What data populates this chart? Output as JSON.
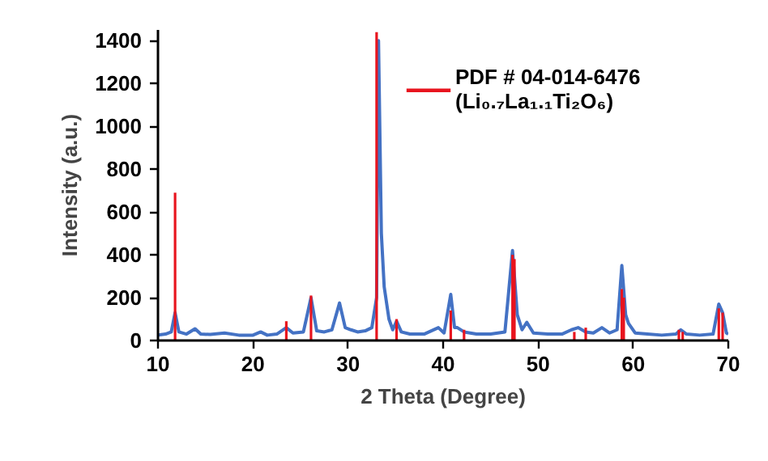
{
  "chart_data": {
    "type": "line",
    "xlabel": "2 Theta (Degree)",
    "ylabel": "Intensity (a.u.)",
    "xlim": [
      10,
      70
    ],
    "xticks": [
      10,
      20,
      30,
      40,
      50,
      60,
      70
    ],
    "ylim": [
      0,
      1450
    ],
    "yticks": [
      0,
      200,
      400,
      600,
      800,
      1000,
      1200,
      1400
    ],
    "grid": false,
    "legend": "top right",
    "series": [
      {
        "color": "#4472c4",
        "x": [
          10,
          10.8,
          11.4,
          11.8,
          12.2,
          13,
          13.9,
          14.5,
          15.5,
          17,
          18.5,
          20,
          20.8,
          21.5,
          22.5,
          23.5,
          24.2,
          25.3,
          26.1,
          26.7,
          27.5,
          28.3,
          29.1,
          29.7,
          30.3,
          31,
          31.8,
          32.5,
          33.0,
          33.2,
          33.5,
          33.8,
          34.3,
          34.7,
          35.1,
          35.6,
          36.5,
          38,
          39.5,
          40.1,
          40.8,
          41.2,
          41.5,
          42.2,
          43.5,
          45,
          46.5,
          47.3,
          47.8,
          48.3,
          48.8,
          49.5,
          51,
          52.5,
          53.5,
          54.2,
          55,
          55.8,
          56.7,
          57.5,
          58.3,
          58.8,
          59.2,
          59.5,
          60.2,
          61.5,
          63,
          64.5,
          65,
          65.6,
          67,
          68.4,
          69,
          69.4,
          69.8,
          70
        ],
        "values": [
          25,
          30,
          40,
          130,
          40,
          30,
          55,
          30,
          28,
          35,
          25,
          25,
          40,
          25,
          30,
          60,
          35,
          40,
          200,
          45,
          40,
          50,
          175,
          60,
          50,
          40,
          45,
          60,
          200,
          1400,
          500,
          250,
          100,
          50,
          90,
          40,
          30,
          30,
          60,
          35,
          215,
          60,
          60,
          40,
          30,
          30,
          40,
          420,
          120,
          50,
          85,
          35,
          30,
          30,
          50,
          60,
          40,
          35,
          60,
          35,
          50,
          350,
          120,
          80,
          35,
          30,
          25,
          30,
          50,
          30,
          25,
          30,
          170,
          130,
          35,
          30
        ]
      },
      {
        "type": "bar",
        "name": "PDF # 04-014-6476\n(Li₀.₇La₁.₁Ti₂O₆)",
        "color": "#e8141e",
        "x": [
          11.8,
          23.5,
          26.1,
          33.0,
          35.1,
          40.8,
          42.2,
          47.3,
          47.5,
          53.8,
          55.0,
          58.8,
          59.0,
          64.8,
          65.2,
          69.0,
          69.4
        ],
        "values": [
          690,
          90,
          210,
          1440,
          100,
          140,
          50,
          400,
          380,
          40,
          60,
          240,
          200,
          50,
          40,
          150,
          130
        ]
      }
    ]
  }
}
